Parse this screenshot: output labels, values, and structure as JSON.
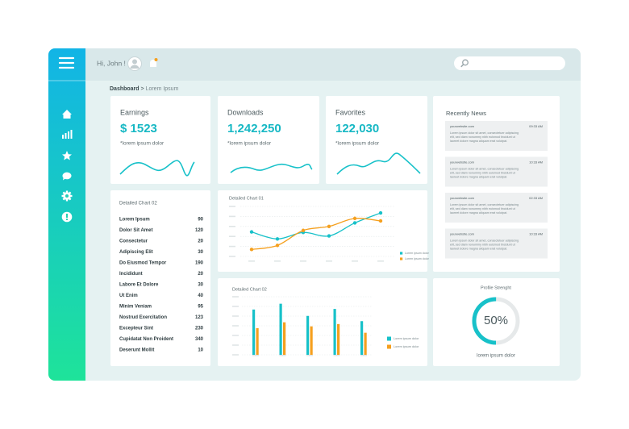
{
  "header": {
    "greeting": "Hi, John !"
  },
  "breadcrumb": {
    "current": "Dashboard",
    "separator": ">",
    "page": "Lorem Ipsum"
  },
  "stats": [
    {
      "title": "Earnings",
      "value": "$ 1523",
      "caption": "*lorem ipsum dolor"
    },
    {
      "title": "Downloads",
      "value": "1,242,250",
      "caption": "*lorem ipsum dolor"
    },
    {
      "title": "Favorites",
      "value": "122,030",
      "caption": "*lorem ipsum dolor"
    }
  ],
  "list": {
    "title": "Detailed Chart 02",
    "items": [
      {
        "label": "Lorem Ipsum",
        "value": 90
      },
      {
        "label": "Dolor Sit Amet",
        "value": 120
      },
      {
        "label": "Consectetur",
        "value": 20
      },
      {
        "label": "Adipiscing Elit",
        "value": 30
      },
      {
        "label": "Do Eiusmod Tempor",
        "value": 190
      },
      {
        "label": "Incididunt",
        "value": 20
      },
      {
        "label": "Labore Et Dolore",
        "value": 30
      },
      {
        "label": "Ut Enim",
        "value": 40
      },
      {
        "label": "Minim Veniam",
        "value": 95
      },
      {
        "label": "Nostrud Exercitation",
        "value": 123
      },
      {
        "label": "Excepteur Sint",
        "value": 230
      },
      {
        "label": "Cupidatat Non Proident",
        "value": 340
      },
      {
        "label": "Deserunt Mollit",
        "value": 10
      }
    ]
  },
  "line_chart": {
    "type": "line",
    "title": "Detailed Chart 01",
    "ylim": [
      0,
      100
    ],
    "series": [
      {
        "name": "Lorem ipsum dolor",
        "color": "#17c1c9",
        "values": [
          49,
          35,
          48,
          41,
          67,
          87
        ]
      },
      {
        "name": "Lorem ipsum dolor",
        "color": "#f5a01f",
        "values": [
          14,
          22,
          52,
          60,
          76,
          71
        ]
      }
    ]
  },
  "bar_chart": {
    "type": "bar",
    "title": "Detailed Chart 02",
    "ylim": [
      0,
      100
    ],
    "series": [
      {
        "name": "Lorem ipsum dolor",
        "color": "#17c1c9",
        "values": [
          78,
          88,
          67,
          79,
          58
        ]
      },
      {
        "name": "Lorem ipsum dolor",
        "color": "#f5a01f",
        "values": [
          46,
          56,
          49,
          53,
          38
        ]
      }
    ]
  },
  "news": {
    "title": "Recently News",
    "items": [
      {
        "site": "yourwebsite.com",
        "time": "09:33 AM",
        "lines": [
          "Lorem ipsum dolor sit amet, consectetuer adipiscing",
          "elit, sed diam nonummy nibh euismod tincidunt ut",
          "laoreet dolore magna aliquam erat volutpat."
        ]
      },
      {
        "site": "yourwebsite.com",
        "time": "10:33 AM",
        "lines": [
          "Lorem ipsum dolor sit amet, consectetuer adipiscing",
          "elit, sed diam nonummy nibh euismod tincidunt ut",
          "laoreet dolore magna aliquam erat volutpat."
        ]
      },
      {
        "site": "yourwebsite.com",
        "time": "02:33 AM",
        "lines": [
          "Lorem ipsum dolor sit amet, consectetuer adipiscing",
          "elit, sed diam nonummy nibh euismod tincidunt ut",
          "laoreet dolore magna aliquam erat volutpat."
        ]
      },
      {
        "site": "yourwebsite.com",
        "time": "10:33 AM",
        "lines": [
          "Lorem ipsum dolor sit amet, consectetuer adipiscing",
          "elit, sed diam nonummy nibh euismod tincidunt ut",
          "laoreet dolore magna aliquam erat volutpat."
        ]
      }
    ]
  },
  "profile": {
    "title": "Profile Strenght",
    "value": 50,
    "value_label": "50%",
    "caption": "lorem ipsum dolor"
  }
}
